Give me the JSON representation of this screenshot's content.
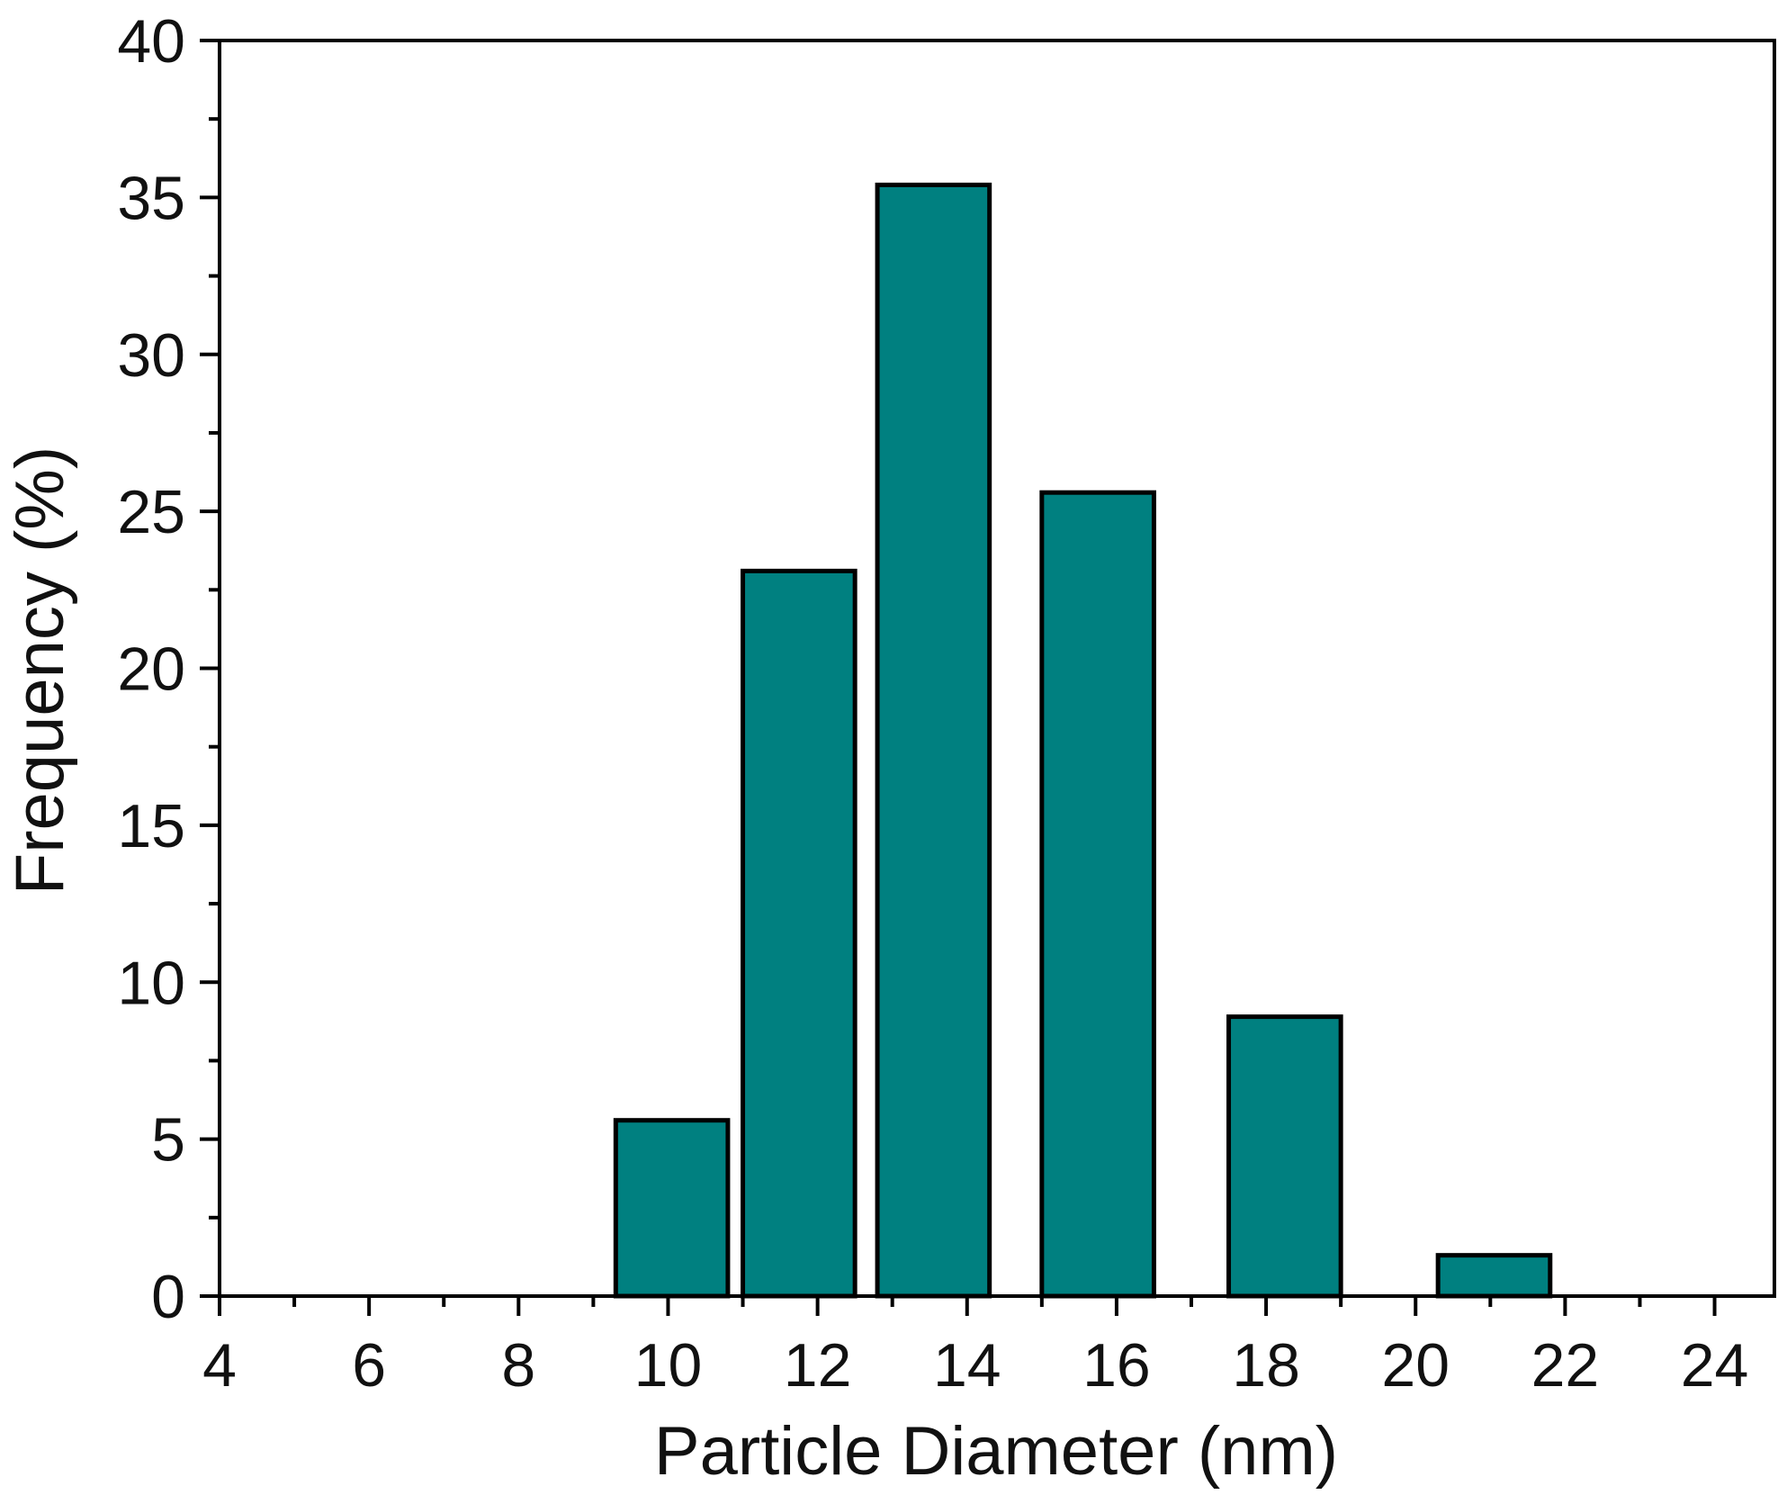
{
  "chart_data": {
    "type": "bar",
    "xlabel": "Particle Diameter (nm)",
    "ylabel": "Frequency (%)",
    "xlim": [
      4,
      24.8
    ],
    "ylim": [
      0,
      40
    ],
    "xticks": [
      4,
      6,
      8,
      10,
      12,
      14,
      16,
      18,
      20,
      22,
      24
    ],
    "yticks": [
      0,
      5,
      10,
      15,
      20,
      25,
      30,
      35,
      40
    ],
    "grid": false,
    "bar_color": "#008080",
    "bars": [
      {
        "x0": 9.3,
        "x1": 10.8,
        "value": 5.6
      },
      {
        "x0": 11.0,
        "x1": 12.5,
        "value": 23.1
      },
      {
        "x0": 12.8,
        "x1": 14.3,
        "value": 35.4
      },
      {
        "x0": 15.0,
        "x1": 16.5,
        "value": 25.6
      },
      {
        "x0": 17.5,
        "x1": 19.0,
        "value": 8.9
      },
      {
        "x0": 20.3,
        "x1": 21.8,
        "value": 1.3
      }
    ]
  }
}
